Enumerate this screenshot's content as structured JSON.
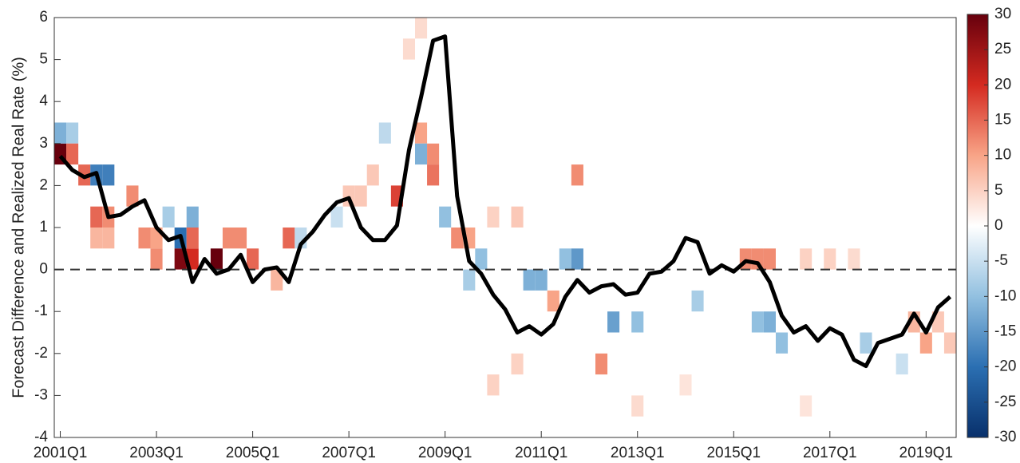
{
  "chart_data": {
    "type": "heatmap",
    "y_label": "Forecast Difference and Realized Real Rate (%)",
    "xlim": [
      2000.875,
      2019.625
    ],
    "xticks": [
      {
        "value": 2001,
        "label": "2001Q1"
      },
      {
        "value": 2003,
        "label": "2003Q1"
      },
      {
        "value": 2005,
        "label": "2005Q1"
      },
      {
        "value": 2007,
        "label": "2007Q1"
      },
      {
        "value": 2009,
        "label": "2009Q1"
      },
      {
        "value": 2011,
        "label": "2011Q1"
      },
      {
        "value": 2013,
        "label": "2013Q1"
      },
      {
        "value": 2015,
        "label": "2015Q1"
      },
      {
        "value": 2017,
        "label": "2017Q1"
      },
      {
        "value": 2019,
        "label": "2019Q1"
      }
    ],
    "ylim": [
      -4,
      6
    ],
    "yticks": [
      -4,
      -3,
      -2,
      -1,
      0,
      1,
      2,
      3,
      4,
      5,
      6
    ],
    "reference_line": 0,
    "zlim": [
      -30,
      30
    ],
    "zticks": [
      -30,
      -25,
      -20,
      -15,
      -10,
      -5,
      0,
      5,
      10,
      15,
      20,
      25,
      30
    ],
    "colormap": [
      "#08306b",
      "#2b6fb2",
      "#92c0e0",
      "#ffffff",
      "#f8a487",
      "#d42a20",
      "#67000d"
    ],
    "cells": [
      {
        "x": 2001,
        "y": 2.5,
        "value": 30
      },
      {
        "x": 2001,
        "y": 3.0,
        "value": -12
      },
      {
        "x": 2001.25,
        "y": 3.0,
        "value": -8
      },
      {
        "x": 2001.25,
        "y": 2.5,
        "value": 15
      },
      {
        "x": 2001.5,
        "y": 2.0,
        "value": 15
      },
      {
        "x": 2001.75,
        "y": 2.0,
        "value": -18
      },
      {
        "x": 2002,
        "y": 2.0,
        "value": -18
      },
      {
        "x": 2001.75,
        "y": 1.0,
        "value": 15
      },
      {
        "x": 2002,
        "y": 1.0,
        "value": 12
      },
      {
        "x": 2001.75,
        "y": 0.5,
        "value": 8
      },
      {
        "x": 2002,
        "y": 0.5,
        "value": 8
      },
      {
        "x": 2002.5,
        "y": 1.5,
        "value": 12
      },
      {
        "x": 2002.75,
        "y": 0.5,
        "value": 12
      },
      {
        "x": 2003,
        "y": 0.5,
        "value": 10
      },
      {
        "x": 2003,
        "y": 0.0,
        "value": 12
      },
      {
        "x": 2003.25,
        "y": 1.0,
        "value": -8
      },
      {
        "x": 2003.5,
        "y": 0.5,
        "value": -20
      },
      {
        "x": 2003.5,
        "y": 0.0,
        "value": 28
      },
      {
        "x": 2003.75,
        "y": 0.0,
        "value": 20
      },
      {
        "x": 2003.75,
        "y": 0.5,
        "value": 15
      },
      {
        "x": 2003.75,
        "y": 1.0,
        "value": -12
      },
      {
        "x": 2004.25,
        "y": 0.0,
        "value": 30
      },
      {
        "x": 2004.5,
        "y": 0.5,
        "value": 12
      },
      {
        "x": 2004.75,
        "y": 0.5,
        "value": 12
      },
      {
        "x": 2005,
        "y": 0.0,
        "value": 15
      },
      {
        "x": 2005.75,
        "y": 0.5,
        "value": 15
      },
      {
        "x": 2005.5,
        "y": -0.5,
        "value": 8
      },
      {
        "x": 2006,
        "y": 0.5,
        "value": -6
      },
      {
        "x": 2006.75,
        "y": 1.0,
        "value": -5
      },
      {
        "x": 2007,
        "y": 1.5,
        "value": 6
      },
      {
        "x": 2007.25,
        "y": 1.5,
        "value": 6
      },
      {
        "x": 2007.5,
        "y": 2.0,
        "value": 6
      },
      {
        "x": 2008,
        "y": 1.5,
        "value": 18
      },
      {
        "x": 2007.75,
        "y": 3.0,
        "value": -6
      },
      {
        "x": 2008.25,
        "y": 5.0,
        "value": 4
      },
      {
        "x": 2008.5,
        "y": 5.5,
        "value": 4
      },
      {
        "x": 2008.5,
        "y": 3.0,
        "value": 10
      },
      {
        "x": 2008.5,
        "y": 2.5,
        "value": -12
      },
      {
        "x": 2008.75,
        "y": 2.5,
        "value": 12
      },
      {
        "x": 2008.75,
        "y": 2.0,
        "value": 14
      },
      {
        "x": 2009,
        "y": 1.0,
        "value": -10
      },
      {
        "x": 2009.25,
        "y": 0.5,
        "value": 12
      },
      {
        "x": 2009.5,
        "y": 0.5,
        "value": 10
      },
      {
        "x": 2009.5,
        "y": -0.5,
        "value": -8
      },
      {
        "x": 2009.75,
        "y": 0.0,
        "value": -10
      },
      {
        "x": 2010,
        "y": 1.0,
        "value": 5
      },
      {
        "x": 2010.5,
        "y": 1.0,
        "value": 6
      },
      {
        "x": 2010.75,
        "y": -0.5,
        "value": -12
      },
      {
        "x": 2011,
        "y": -0.5,
        "value": -12
      },
      {
        "x": 2011.25,
        "y": -1.0,
        "value": 10
      },
      {
        "x": 2011.5,
        "y": 0.0,
        "value": -10
      },
      {
        "x": 2011.75,
        "y": 0.0,
        "value": -15
      },
      {
        "x": 2011.75,
        "y": 2.0,
        "value": 12
      },
      {
        "x": 2012.25,
        "y": -2.5,
        "value": 12
      },
      {
        "x": 2012.5,
        "y": -1.5,
        "value": -14
      },
      {
        "x": 2013,
        "y": -1.5,
        "value": -10
      },
      {
        "x": 2014.25,
        "y": -1.0,
        "value": -8
      },
      {
        "x": 2015.25,
        "y": 0.0,
        "value": 12
      },
      {
        "x": 2015.5,
        "y": 0.0,
        "value": 12
      },
      {
        "x": 2015.75,
        "y": 0.0,
        "value": 12
      },
      {
        "x": 2015.75,
        "y": -1.5,
        "value": -12
      },
      {
        "x": 2016,
        "y": -2.0,
        "value": -10
      },
      {
        "x": 2015.5,
        "y": -1.5,
        "value": -10
      },
      {
        "x": 2016.5,
        "y": 0.0,
        "value": 5
      },
      {
        "x": 2017,
        "y": 0.0,
        "value": 5
      },
      {
        "x": 2017.5,
        "y": 0.0,
        "value": 4
      },
      {
        "x": 2017.75,
        "y": -2.0,
        "value": -8
      },
      {
        "x": 2018.75,
        "y": -1.5,
        "value": 8
      },
      {
        "x": 2019,
        "y": -2.0,
        "value": 10
      },
      {
        "x": 2018.5,
        "y": -2.5,
        "value": -5
      },
      {
        "x": 2019.25,
        "y": -1.5,
        "value": 6
      },
      {
        "x": 2019.5,
        "y": -2.0,
        "value": 6
      },
      {
        "x": 2013,
        "y": -3.5,
        "value": 4
      },
      {
        "x": 2014,
        "y": -3.0,
        "value": 3
      },
      {
        "x": 2016.5,
        "y": -3.5,
        "value": 3
      },
      {
        "x": 2010,
        "y": -3.0,
        "value": 5
      },
      {
        "x": 2010.5,
        "y": -2.5,
        "value": 5
      }
    ],
    "series": [
      {
        "type": "line",
        "color": "#000000",
        "x": [
          2001,
          2001.25,
          2001.5,
          2001.75,
          2002,
          2002.25,
          2002.5,
          2002.75,
          2003,
          2003.25,
          2003.5,
          2003.75,
          2004,
          2004.25,
          2004.5,
          2004.75,
          2005,
          2005.25,
          2005.5,
          2005.75,
          2006,
          2006.25,
          2006.5,
          2006.75,
          2007,
          2007.25,
          2007.5,
          2007.75,
          2008,
          2008.25,
          2008.5,
          2008.75,
          2009,
          2009.25,
          2009.5,
          2009.75,
          2010,
          2010.25,
          2010.5,
          2010.75,
          2011,
          2011.25,
          2011.5,
          2011.75,
          2012,
          2012.25,
          2012.5,
          2012.75,
          2013,
          2013.25,
          2013.5,
          2013.75,
          2014,
          2014.25,
          2014.5,
          2014.75,
          2015,
          2015.25,
          2015.5,
          2015.75,
          2016,
          2016.25,
          2016.5,
          2016.75,
          2017,
          2017.25,
          2017.5,
          2017.75,
          2018,
          2018.25,
          2018.5,
          2018.75,
          2019,
          2019.25,
          2019.5
        ],
        "values": [
          2.7,
          2.37,
          2.2,
          2.3,
          1.25,
          1.3,
          1.5,
          1.65,
          1.0,
          0.7,
          0.8,
          -0.3,
          0.25,
          -0.1,
          0.0,
          0.35,
          -0.3,
          0.0,
          0.05,
          -0.3,
          0.6,
          0.9,
          1.3,
          1.6,
          1.7,
          1.0,
          0.7,
          0.7,
          1.05,
          2.85,
          4.1,
          5.45,
          5.55,
          1.75,
          0.2,
          -0.1,
          -0.6,
          -0.95,
          -1.5,
          -1.35,
          -1.55,
          -1.3,
          -0.65,
          -0.25,
          -0.55,
          -0.4,
          -0.35,
          -0.6,
          -0.55,
          -0.1,
          -0.05,
          0.2,
          0.75,
          0.65,
          -0.1,
          0.1,
          -0.05,
          0.2,
          0.15,
          -0.3,
          -1.1,
          -1.5,
          -1.35,
          -1.7,
          -1.4,
          -1.55,
          -2.15,
          -2.3,
          -1.75,
          -1.65,
          -1.55,
          -1.05,
          -1.5,
          -0.9,
          -0.65
        ]
      }
    ]
  }
}
